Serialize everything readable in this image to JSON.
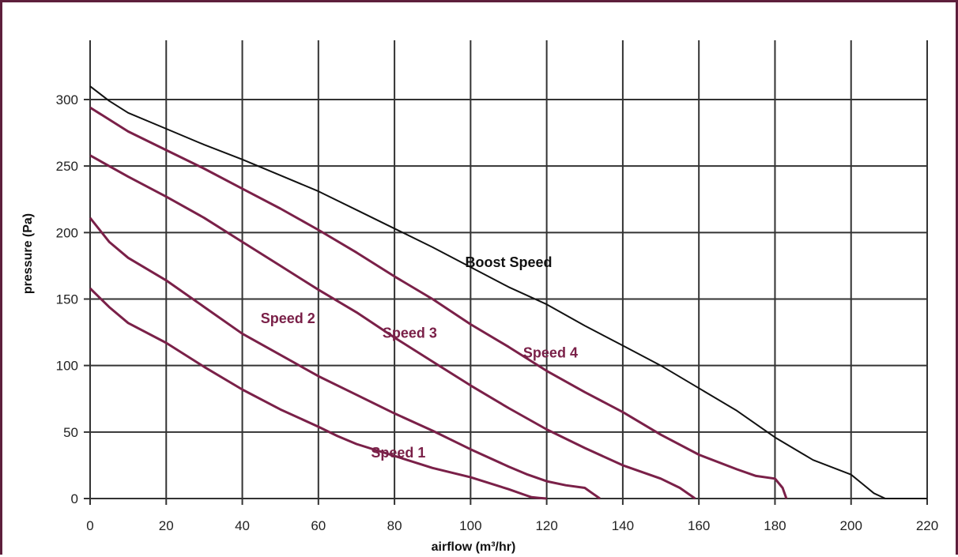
{
  "chart_data": {
    "type": "line",
    "xlabel": "airflow (m³/hr)",
    "ylabel": "pressure (Pa)",
    "xlim": [
      0,
      220
    ],
    "ylim": [
      0,
      300
    ],
    "x_ticks": [
      0,
      20,
      40,
      60,
      80,
      100,
      120,
      140,
      160,
      180,
      200,
      220
    ],
    "y_ticks": [
      0,
      50,
      100,
      150,
      200,
      250,
      300
    ],
    "grid": true,
    "colors": {
      "boost": "#111111",
      "speed": "#7a2048",
      "grid": "#333333"
    },
    "series": [
      {
        "name": "Speed 1",
        "color": "#7a2048",
        "x": [
          0,
          5,
          10,
          20,
          30,
          40,
          50,
          60,
          65,
          70,
          80,
          90,
          100,
          110,
          114,
          116,
          118,
          120
        ],
        "y": [
          158,
          144,
          132,
          117,
          99,
          82,
          67,
          54,
          47,
          41,
          32,
          23,
          16,
          7,
          3,
          1,
          0.5,
          0
        ]
      },
      {
        "name": "Speed 2",
        "color": "#7a2048",
        "x": [
          0,
          5,
          10,
          20,
          30,
          40,
          50,
          60,
          70,
          80,
          90,
          100,
          110,
          115,
          120,
          125,
          130,
          132,
          134
        ],
        "y": [
          211,
          193,
          181,
          164,
          144,
          124,
          108,
          92,
          78,
          64,
          51,
          37,
          24,
          18,
          13,
          10,
          8,
          4,
          0
        ]
      },
      {
        "name": "Speed 3",
        "color": "#7a2048",
        "x": [
          0,
          10,
          20,
          30,
          40,
          50,
          60,
          70,
          80,
          90,
          100,
          110,
          120,
          130,
          140,
          150,
          155,
          158,
          159
        ],
        "y": [
          258,
          242,
          227,
          211,
          193,
          175,
          157,
          140,
          121,
          103,
          85,
          68,
          52,
          38,
          25,
          15,
          8,
          2,
          0
        ]
      },
      {
        "name": "Speed 4",
        "color": "#7a2048",
        "x": [
          0,
          10,
          20,
          30,
          40,
          50,
          60,
          70,
          80,
          90,
          100,
          110,
          120,
          130,
          140,
          150,
          160,
          170,
          175,
          180,
          182,
          183
        ],
        "y": [
          294,
          276,
          262,
          248,
          233,
          218,
          202,
          185,
          167,
          150,
          131,
          114,
          96,
          80,
          65,
          48,
          33,
          22,
          17,
          15,
          8,
          0
        ]
      },
      {
        "name": "Boost Speed",
        "color": "#111111",
        "x": [
          0,
          5,
          10,
          20,
          30,
          40,
          50,
          60,
          70,
          80,
          90,
          100,
          110,
          120,
          130,
          140,
          150,
          160,
          170,
          180,
          190,
          200,
          203,
          206,
          209,
          220
        ],
        "y": [
          310,
          299,
          290,
          278,
          266,
          255,
          243,
          231,
          217,
          203,
          189,
          174,
          159,
          146,
          130,
          115,
          100,
          83,
          66,
          46,
          29,
          18,
          11,
          4,
          0,
          0
        ]
      }
    ],
    "labels": [
      {
        "text": "Speed 1",
        "x": 81,
        "y": 31,
        "series": "Speed 1"
      },
      {
        "text": "Speed 2",
        "x": 52,
        "y": 132,
        "series": "Speed 2"
      },
      {
        "text": "Speed 3",
        "x": 84,
        "y": 121,
        "series": "Speed 3"
      },
      {
        "text": "Speed 4",
        "x": 121,
        "y": 106,
        "series": "Speed 4"
      },
      {
        "text": "Boost Speed",
        "x": 110,
        "y": 174,
        "series": "Boost Speed"
      }
    ]
  }
}
